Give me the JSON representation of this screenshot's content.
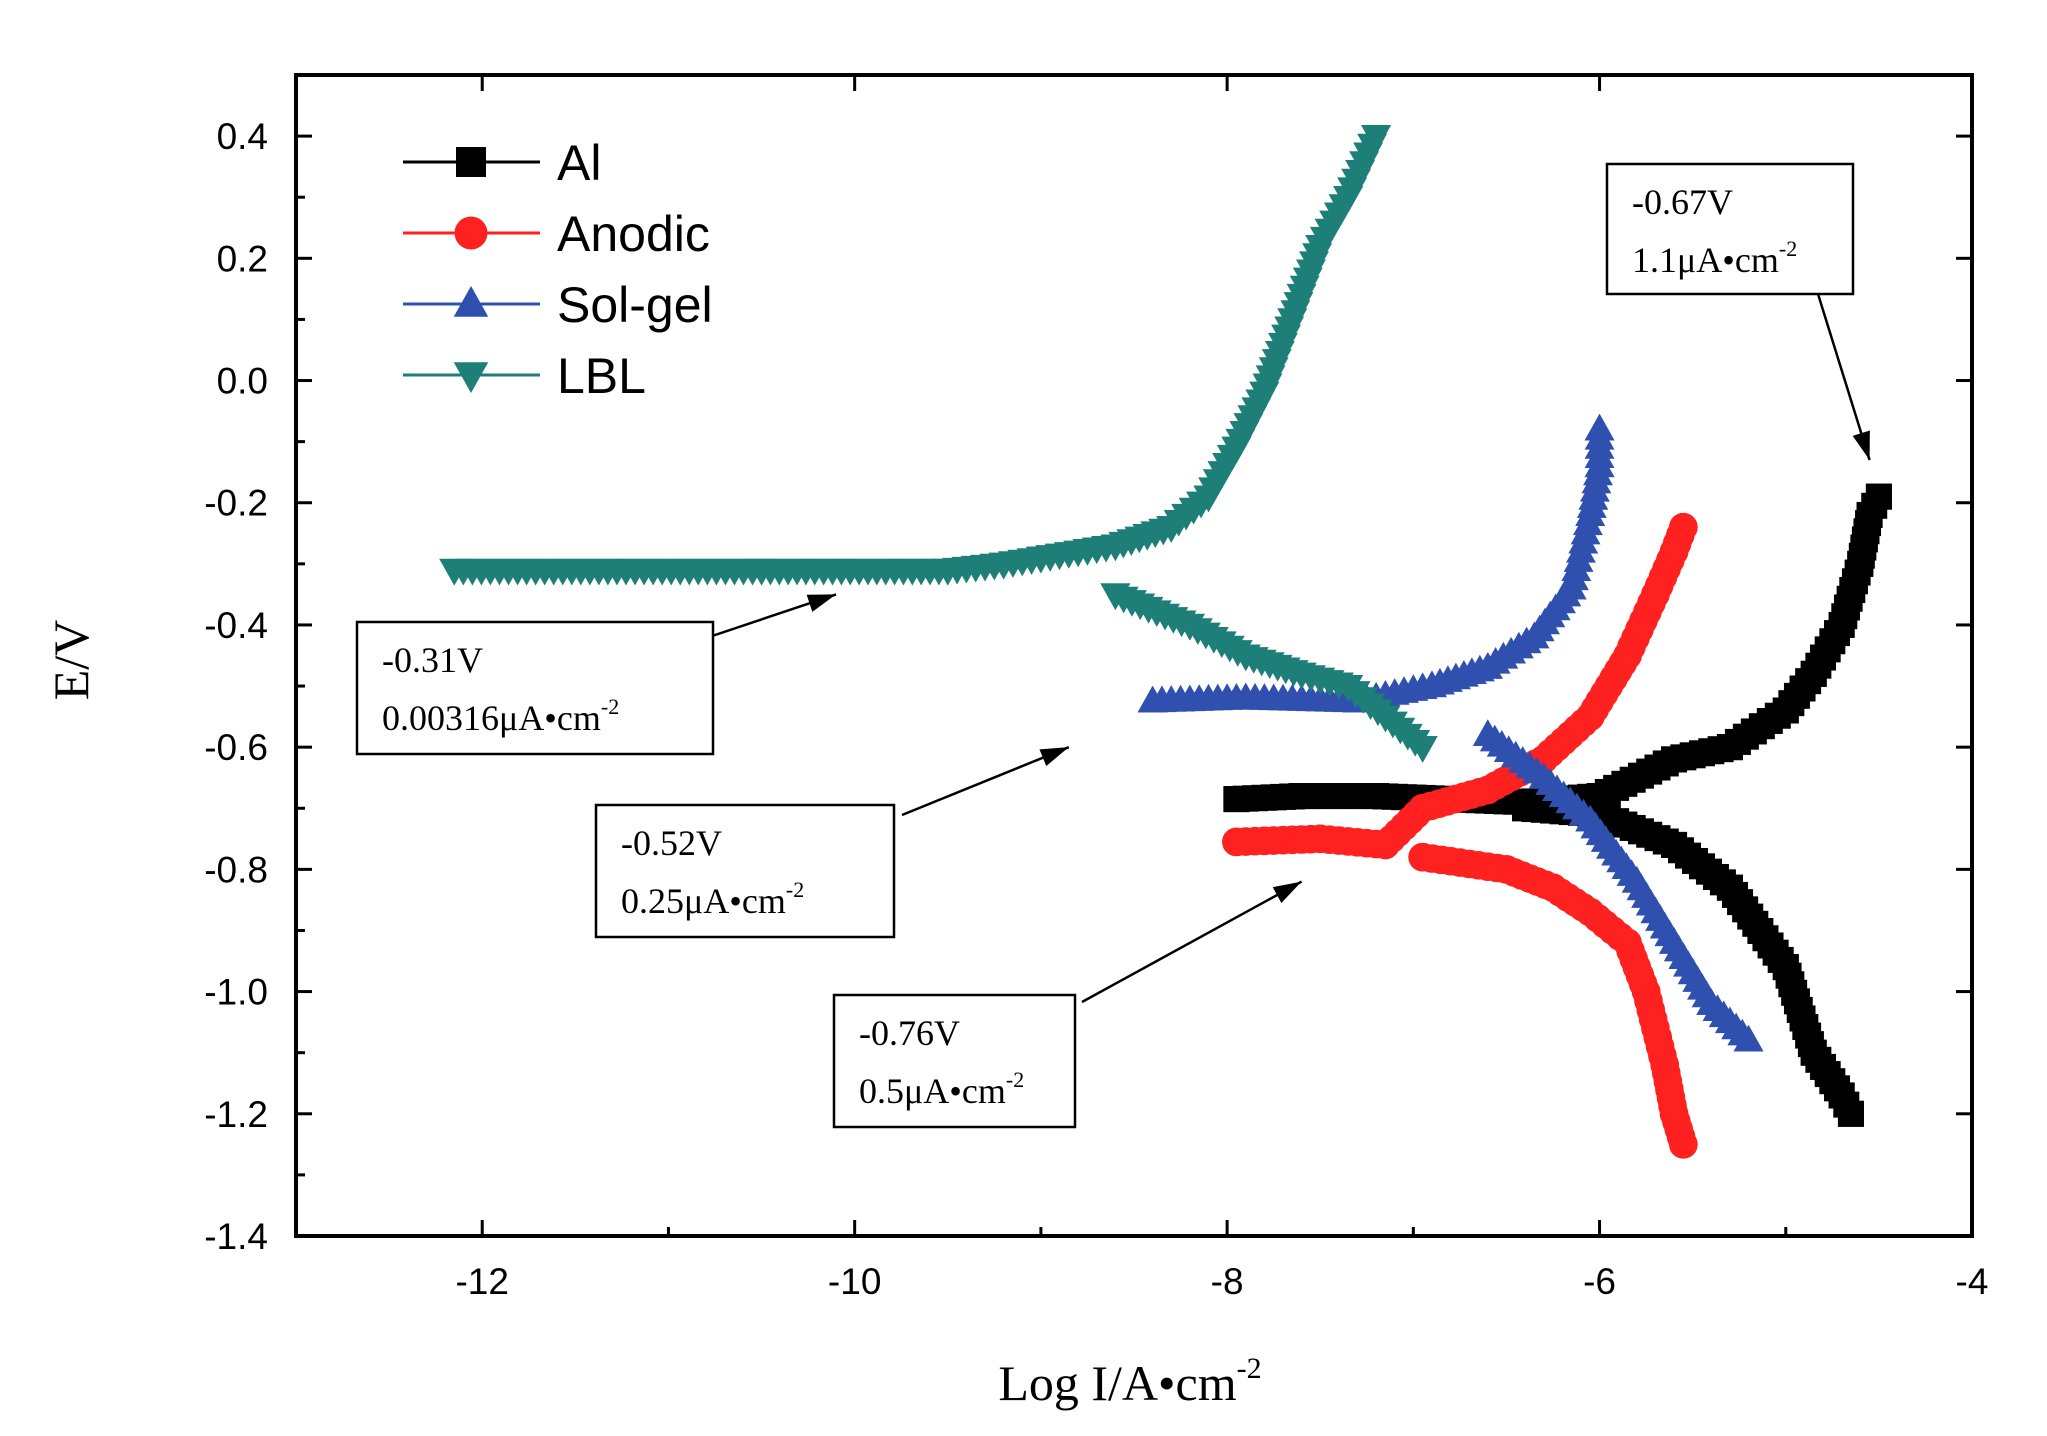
{
  "chart_data": {
    "type": "line",
    "title": "",
    "xlabel": "Log I/A•cm",
    "xlabel_sup": "-2",
    "ylabel": "E/V",
    "xlim": [
      -13,
      -4
    ],
    "ylim": [
      -1.4,
      0.5
    ],
    "x_ticks": [
      -12,
      -10,
      -8,
      -6,
      -4
    ],
    "x_tick_labels": [
      "-12",
      "-10",
      "-8",
      "-6",
      "-4"
    ],
    "y_ticks": [
      0.4,
      0.2,
      0.0,
      -0.2,
      -0.4,
      -0.6,
      -0.8,
      -1.0,
      -1.2,
      -1.4
    ],
    "y_tick_labels": [
      "0.4",
      "0.2",
      "0.0",
      "-0.2",
      "-0.4",
      "-0.6",
      "-0.8",
      "-1.0",
      "-1.2",
      "-1.4"
    ],
    "grid": false,
    "legend_position": "top-left",
    "series": [
      {
        "name": "Al",
        "color": "#000000",
        "marker": "square",
        "x": [
          -7.95,
          -7.6,
          -7.2,
          -6.8,
          -6.4,
          -6.0,
          -5.6,
          -5.3,
          -5.0,
          -4.85,
          -4.7,
          -4.6,
          -4.55,
          -4.5,
          -6.4,
          -6.0,
          -5.6,
          -5.3,
          -5.0,
          -4.85,
          -4.7,
          -4.65
        ],
        "y": [
          -0.685,
          -0.68,
          -0.68,
          -0.685,
          -0.69,
          -0.68,
          -0.62,
          -0.6,
          -0.54,
          -0.48,
          -0.4,
          -0.3,
          -0.22,
          -0.19,
          -0.7,
          -0.71,
          -0.76,
          -0.83,
          -0.96,
          -1.1,
          -1.17,
          -1.2
        ]
      },
      {
        "name": "Anodic",
        "color": "#ff2020",
        "marker": "circle",
        "x": [
          -7.95,
          -7.5,
          -7.15,
          -6.95,
          -6.6,
          -6.3,
          -6.05,
          -5.85,
          -5.7,
          -5.6,
          -5.55,
          -6.95,
          -6.5,
          -6.25,
          -6.05,
          -5.85,
          -5.75,
          -5.65,
          -5.6,
          -5.55
        ],
        "y": [
          -0.755,
          -0.75,
          -0.76,
          -0.7,
          -0.67,
          -0.62,
          -0.55,
          -0.45,
          -0.35,
          -0.28,
          -0.24,
          -0.78,
          -0.8,
          -0.83,
          -0.87,
          -0.92,
          -1.0,
          -1.12,
          -1.2,
          -1.25
        ]
      },
      {
        "name": "Sol-gel",
        "color": "#3050b0",
        "marker": "triangle-up",
        "x": [
          -8.4,
          -7.9,
          -7.3,
          -6.9,
          -6.6,
          -6.35,
          -6.15,
          -6.05,
          -6.0,
          -6.0,
          -6.6,
          -6.3,
          -6.05,
          -5.8,
          -5.6,
          -5.4,
          -5.2
        ],
        "y": [
          -0.525,
          -0.52,
          -0.525,
          -0.5,
          -0.47,
          -0.42,
          -0.34,
          -0.22,
          -0.14,
          -0.08,
          -0.58,
          -0.65,
          -0.72,
          -0.82,
          -0.92,
          -1.02,
          -1.08
        ]
      },
      {
        "name": "LBL",
        "color": "#1e7e78",
        "marker": "triangle-down",
        "x": [
          -12.15,
          -10.5,
          -9.5,
          -9.2,
          -9.0,
          -8.6,
          -8.3,
          -8.1,
          -7.95,
          -7.8,
          -7.65,
          -7.5,
          -7.35,
          -7.2,
          -8.6,
          -8.2,
          -7.9,
          -7.6,
          -7.35,
          -7.15,
          -6.95
        ],
        "y": [
          -0.31,
          -0.31,
          -0.31,
          -0.3,
          -0.29,
          -0.27,
          -0.24,
          -0.19,
          -0.11,
          -0.02,
          0.1,
          0.22,
          0.3,
          0.4,
          -0.35,
          -0.4,
          -0.45,
          -0.48,
          -0.5,
          -0.55,
          -0.6
        ]
      }
    ],
    "annotations": [
      {
        "value": "-0.31V",
        "current": "0.00316μA•cm",
        "sup": "-2",
        "points_to": [
          -10.1,
          -0.35
        ]
      },
      {
        "value": "-0.52V",
        "current": "0.25μA•cm",
        "sup": "-2",
        "points_to": [
          -8.85,
          -0.6
        ]
      },
      {
        "value": "-0.76V",
        "current": "0.5μA•cm",
        "sup": "-2",
        "points_to": [
          -7.6,
          -0.82
        ]
      },
      {
        "value": "-0.67V",
        "current": "1.1μA•cm",
        "sup": "-2",
        "points_to": [
          -4.55,
          -0.13
        ]
      }
    ]
  }
}
